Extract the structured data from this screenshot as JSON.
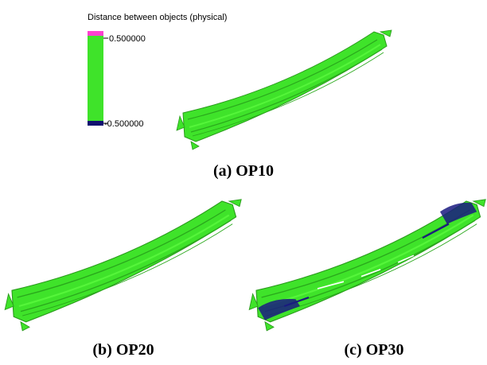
{
  "legend": {
    "title": "Distance between objects (physical)",
    "max_label": "0.500000",
    "min_label": "-0.500000"
  },
  "captions": [
    "(a) OP10",
    "(b) OP20",
    "(c) OP30"
  ]
}
